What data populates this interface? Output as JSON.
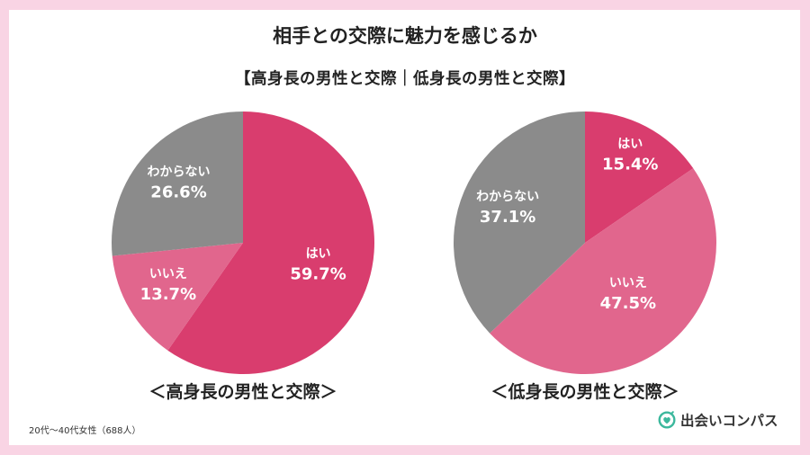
{
  "title": "相手との交際に魅力を感じるか",
  "subtitle": "【高身長の男性と交際｜低身長の男性と交際】",
  "footnote": "20代〜40代女性（688人）",
  "brand": {
    "name": "出会いコンパス",
    "icon": "compass-heart-icon",
    "color": "#3cb89d"
  },
  "colors": {
    "はい": "#d93d6e",
    "いいえ": "#e1668d",
    "わからない": "#8b8b8b",
    "background": "#f9d4e4"
  },
  "chart_data": [
    {
      "type": "pie",
      "title": "＜高身長の男性と交際＞",
      "labels": [
        "はい",
        "いいえ",
        "わからない"
      ],
      "values": [
        59.7,
        13.7,
        26.6
      ],
      "value_labels": [
        "59.7%",
        "13.7%",
        "26.6%"
      ],
      "start": "12 o'clock",
      "direction": "clockwise"
    },
    {
      "type": "pie",
      "title": "＜低身長の男性と交際＞",
      "labels": [
        "はい",
        "いいえ",
        "わからない"
      ],
      "values": [
        15.4,
        47.5,
        37.1
      ],
      "value_labels": [
        "15.4%",
        "47.5%",
        "37.1%"
      ],
      "start": "12 o'clock",
      "direction": "clockwise"
    }
  ]
}
